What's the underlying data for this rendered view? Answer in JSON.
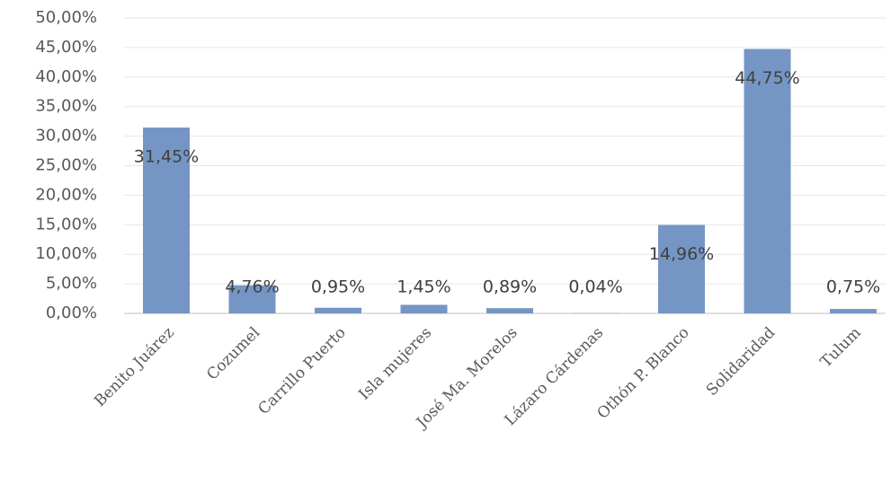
{
  "chart_data": {
    "type": "bar",
    "categories": [
      "Benito Juárez",
      "Cozumel",
      "Carrillo Puerto",
      "Isla mujeres",
      "José Ma. Morelos",
      "Lázaro Cárdenas",
      "Othón P. Blanco",
      "Solidaridad",
      "Tulum"
    ],
    "values": [
      31.45,
      4.76,
      0.95,
      1.45,
      0.89,
      0.04,
      14.96,
      44.75,
      0.75
    ],
    "value_labels": [
      "31,45%",
      "4,76%",
      "0,95%",
      "1,45%",
      "0,89%",
      "0,04%",
      "14,96%",
      "44,75%",
      "0,75%"
    ],
    "color": "#7596c4",
    "ylim": [
      0,
      50
    ],
    "yticks": [
      {
        "value": 0,
        "label": "0,00%"
      },
      {
        "value": 5,
        "label": "5,00%"
      },
      {
        "value": 10,
        "label": "10,00%"
      },
      {
        "value": 15,
        "label": "15,00%"
      },
      {
        "value": 20,
        "label": "20,00%"
      },
      {
        "value": 25,
        "label": "25,00%"
      },
      {
        "value": 30,
        "label": "30,00%"
      },
      {
        "value": 35,
        "label": "35,00%"
      },
      {
        "value": 40,
        "label": "40,00%"
      },
      {
        "value": 45,
        "label": "45,00%"
      },
      {
        "value": 50,
        "label": "50,00%"
      }
    ],
    "grid": true
  }
}
